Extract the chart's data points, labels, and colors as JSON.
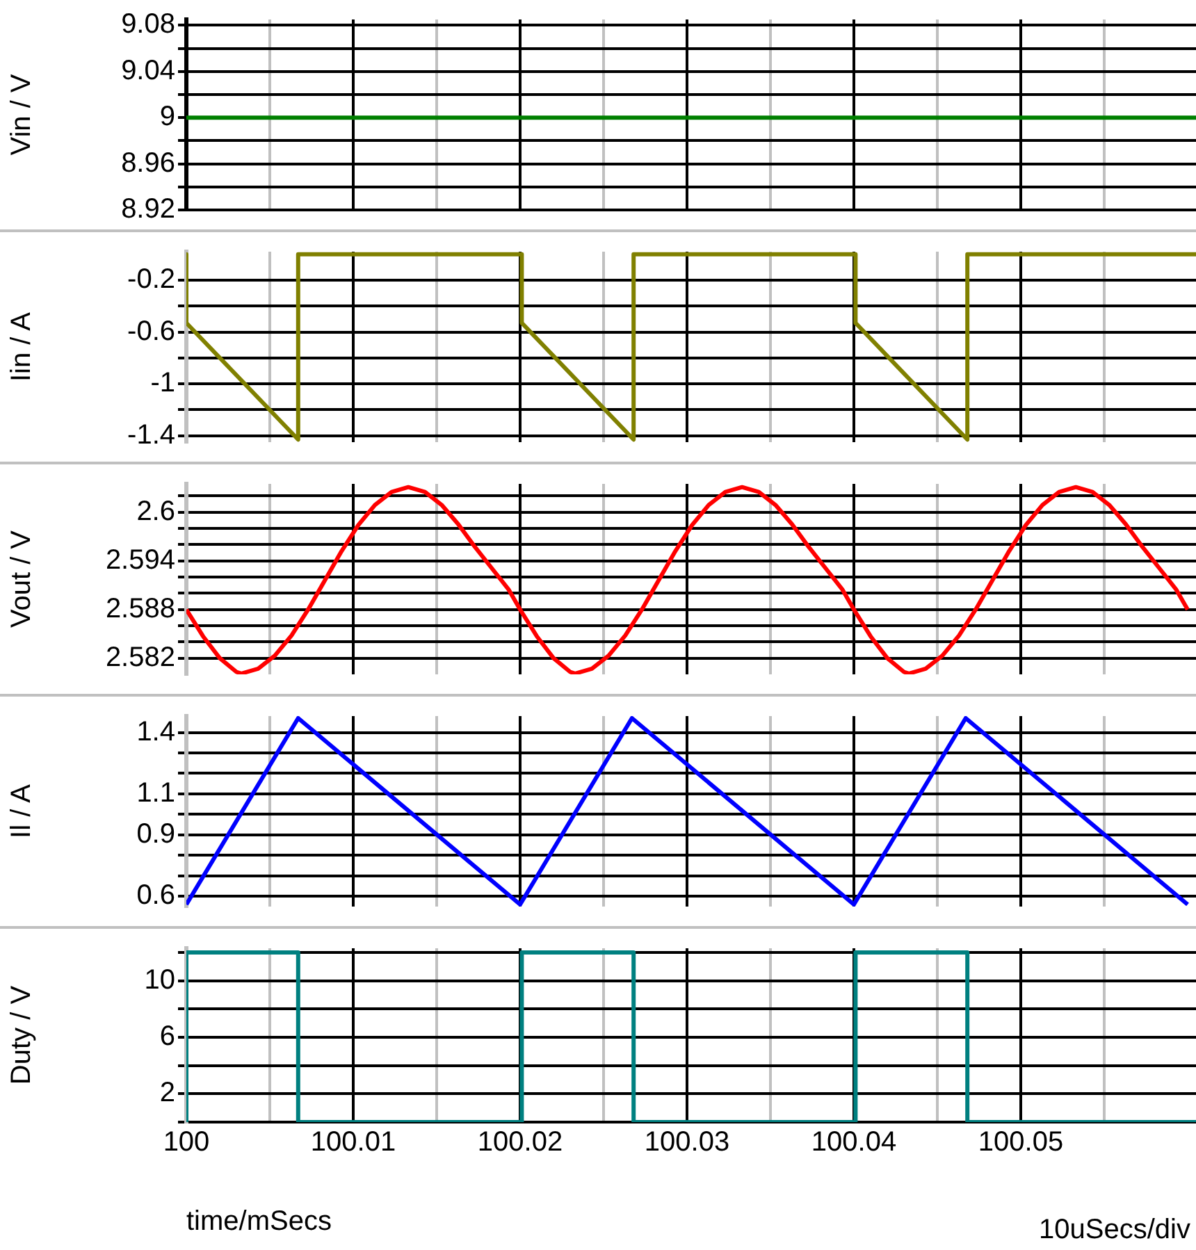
{
  "chart_data": [
    {
      "type": "line",
      "ylabel": "Vin / V",
      "xlim": [
        100,
        100.0605
      ],
      "xticks": [
        100,
        {
          "value": 100.005,
          "label": null
        },
        100.01,
        {
          "value": 100.015,
          "label": null
        },
        100.02,
        {
          "value": 100.025,
          "label": null
        },
        100.03,
        {
          "value": 100.035,
          "label": null
        },
        100.04,
        {
          "value": 100.045,
          "label": null
        },
        100.05,
        {
          "value": 100.055,
          "label": null
        }
      ],
      "ylim": [
        8.92,
        9.085
      ],
      "yticks": [
        8.92,
        {
          "value": 8.94,
          "label": null
        },
        8.96,
        {
          "value": 8.98,
          "label": null
        },
        9,
        {
          "value": 9.02,
          "label": null
        },
        9.04,
        {
          "value": 9.06,
          "label": null
        },
        9.08
      ],
      "grid": true,
      "tick_labels": "y",
      "series": [
        {
          "color": "#008000",
          "x": [
            100,
            100.0605
          ],
          "values": [
            9,
            9
          ]
        }
      ]
    },
    {
      "type": "line",
      "ylabel": "Iin / A",
      "xlim": [
        100,
        100.0605
      ],
      "xticks": [
        100,
        {
          "value": 100.005,
          "label": null
        },
        100.01,
        {
          "value": 100.015,
          "label": null
        },
        100.02,
        {
          "value": 100.025,
          "label": null
        },
        100.03,
        {
          "value": 100.035,
          "label": null
        },
        100.04,
        {
          "value": 100.045,
          "label": null
        },
        100.05,
        {
          "value": 100.055,
          "label": null
        }
      ],
      "ylim": [
        -1.45,
        0.02
      ],
      "yticks": [
        -1.4,
        {
          "value": -1.2,
          "label": null
        },
        -1,
        {
          "value": -0.8,
          "label": null
        },
        -0.6,
        {
          "value": -0.4,
          "label": null
        },
        -0.2
      ],
      "grid": true,
      "tick_labels": "y",
      "series": [
        {
          "color": "#808000",
          "x": [
            100,
            100,
            100.0067,
            100.0067,
            100.0201,
            100.0201,
            100.0268,
            100.0268,
            100.0401,
            100.0401,
            100.0468,
            100.0468,
            100.0605
          ],
          "values": [
            0,
            -0.53,
            -1.43,
            0,
            0,
            -0.53,
            -1.43,
            0,
            0,
            -0.53,
            -1.43,
            0,
            0
          ]
        }
      ]
    },
    {
      "type": "line",
      "ylabel": "Vout / V",
      "xlim": [
        100,
        100.0605
      ],
      "xticks": [
        100,
        {
          "value": 100.005,
          "label": null
        },
        100.01,
        {
          "value": 100.015,
          "label": null
        },
        100.02,
        {
          "value": 100.025,
          "label": null
        },
        100.03,
        {
          "value": 100.035,
          "label": null
        },
        100.04,
        {
          "value": 100.045,
          "label": null
        },
        100.05,
        {
          "value": 100.055,
          "label": null
        }
      ],
      "ylim": [
        2.58,
        2.6035
      ],
      "yticks": [
        2.582,
        {
          "value": 2.584,
          "label": null
        },
        {
          "value": 2.586,
          "label": null
        },
        2.588,
        {
          "value": 2.59,
          "label": null
        },
        {
          "value": 2.592,
          "label": null
        },
        2.594,
        {
          "value": 2.596,
          "label": null
        },
        {
          "value": 2.598,
          "label": null
        },
        2.6,
        {
          "value": 2.602,
          "label": null
        }
      ],
      "grid": true,
      "tick_labels": "y",
      "series": [
        {
          "color": "#ff0000",
          "x": [
            100,
            100.001,
            100.002,
            100.003,
            100.0033,
            100.0043,
            100.0053,
            100.0063,
            100.0073,
            100.0083,
            100.0093,
            100.0103,
            100.0113,
            100.0123,
            100.0133,
            100.0143,
            100.0153,
            100.0163,
            100.0173,
            100.0183,
            100.0193,
            100.02,
            100.021,
            100.022,
            100.023,
            100.0233,
            100.0243,
            100.0253,
            100.0263,
            100.0273,
            100.0283,
            100.0293,
            100.0303,
            100.0313,
            100.0323,
            100.0333,
            100.0343,
            100.0353,
            100.0363,
            100.0373,
            100.0383,
            100.0393,
            100.04,
            100.041,
            100.042,
            100.043,
            100.0433,
            100.0443,
            100.0453,
            100.0463,
            100.0473,
            100.0483,
            100.0493,
            100.0503,
            100.0513,
            100.0523,
            100.0533,
            100.0543,
            100.0553,
            100.0563,
            100.0573,
            100.0583,
            100.0593,
            100.06
          ],
          "values": [
            2.588,
            2.5847,
            2.582,
            2.5803,
            2.5801,
            2.5807,
            2.5823,
            2.5848,
            2.588,
            2.5916,
            2.5952,
            2.5984,
            2.6009,
            2.6025,
            2.6031,
            2.6025,
            2.6009,
            2.5985,
            2.5957,
            2.5931,
            2.5905,
            2.588,
            2.5847,
            2.582,
            2.5803,
            2.5801,
            2.5807,
            2.5823,
            2.5848,
            2.588,
            2.5916,
            2.5952,
            2.5984,
            2.6009,
            2.6025,
            2.6031,
            2.6025,
            2.6009,
            2.5985,
            2.5957,
            2.5931,
            2.5905,
            2.588,
            2.5847,
            2.582,
            2.5803,
            2.5801,
            2.5807,
            2.5823,
            2.5848,
            2.588,
            2.5916,
            2.5952,
            2.5984,
            2.6009,
            2.6025,
            2.6031,
            2.6025,
            2.6009,
            2.5985,
            2.5957,
            2.5931,
            2.5905,
            2.588
          ]
        }
      ]
    },
    {
      "type": "line",
      "ylabel": "Il / A",
      "xlim": [
        100,
        100.0605
      ],
      "xticks": [
        100,
        {
          "value": 100.005,
          "label": null
        },
        100.01,
        {
          "value": 100.015,
          "label": null
        },
        100.02,
        {
          "value": 100.025,
          "label": null
        },
        100.03,
        {
          "value": 100.035,
          "label": null
        },
        100.04,
        {
          "value": 100.045,
          "label": null
        },
        100.05,
        {
          "value": 100.055,
          "label": null
        }
      ],
      "ylim": [
        0.55,
        1.48
      ],
      "yticks": [
        0.6,
        {
          "value": 0.7,
          "label": null
        },
        {
          "value": 0.8,
          "label": null
        },
        0.9,
        {
          "value": 1,
          "label": null
        },
        1.1,
        {
          "value": 1.2,
          "label": null
        },
        {
          "value": 1.3,
          "label": null
        },
        1.4
      ],
      "grid": true,
      "tick_labels": "y",
      "series": [
        {
          "color": "#0000ff",
          "x": [
            100,
            100.0067,
            100.02,
            100.0267,
            100.04,
            100.0467,
            100.06
          ],
          "values": [
            0.56,
            1.47,
            0.56,
            1.47,
            0.56,
            1.47,
            0.56
          ]
        }
      ]
    },
    {
      "type": "line",
      "ylabel": "Duty / V",
      "xlabel": "time/mSecs",
      "annotations": [
        "10uSecs/div"
      ],
      "xlim": [
        100,
        100.0605
      ],
      "xticks": [
        100,
        {
          "value": 100.005,
          "label": null
        },
        100.01,
        {
          "value": 100.015,
          "label": null
        },
        100.02,
        {
          "value": 100.025,
          "label": null
        },
        100.03,
        {
          "value": 100.035,
          "label": null
        },
        100.04,
        {
          "value": 100.045,
          "label": null
        },
        100.05,
        {
          "value": 100.055,
          "label": null
        }
      ],
      "ylim": [
        0,
        12.3
      ],
      "yticks": [
        {
          "value": 0,
          "label": null
        },
        2,
        {
          "value": 4,
          "label": null
        },
        6,
        {
          "value": 8,
          "label": null
        },
        10,
        {
          "value": 12,
          "label": null
        }
      ],
      "grid": true,
      "series": [
        {
          "color": "#008080",
          "x": [
            100,
            100,
            100.0067,
            100.0067,
            100.0201,
            100.0201,
            100.0268,
            100.0268,
            100.0401,
            100.0401,
            100.0468,
            100.0468,
            100.0605
          ],
          "values": [
            0,
            12,
            12,
            0,
            0,
            12,
            12,
            0,
            0,
            12,
            12,
            0,
            0
          ]
        }
      ]
    }
  ]
}
